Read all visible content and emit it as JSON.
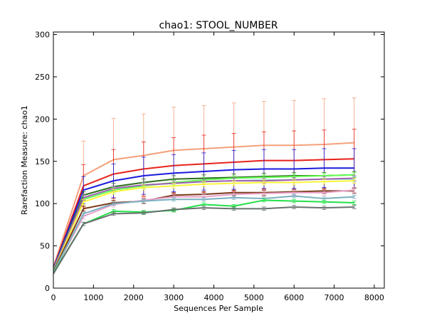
{
  "chart_data": {
    "type": "line",
    "title": "chao1: STOOL_NUMBER",
    "xlabel": "Sequences Per Sample",
    "ylabel": "Rarefaction Measure: chao1",
    "xlim": [
      0,
      8250
    ],
    "ylim": [
      0,
      303
    ],
    "xticks": [
      0,
      1000,
      2000,
      3000,
      4000,
      5000,
      6000,
      7000,
      8000
    ],
    "yticks": [
      0,
      50,
      100,
      150,
      200,
      250,
      300
    ],
    "grid": false,
    "legend": "none",
    "x": [
      1,
      750,
      1500,
      2250,
      3000,
      3750,
      4500,
      5250,
      6000,
      6750,
      7500
    ],
    "series": [
      {
        "color": "#f4a07a",
        "values": [
          25,
          133,
          152,
          157,
          163,
          165,
          167,
          169,
          169,
          170,
          172
        ],
        "error": [
          0,
          41,
          49,
          49,
          51,
          51,
          52,
          52,
          53,
          54,
          53
        ]
      },
      {
        "color": "#e8221b",
        "values": [
          24,
          121,
          135,
          141,
          145,
          147,
          149,
          151,
          151,
          152,
          153
        ],
        "error": [
          0,
          25,
          29,
          32,
          33,
          34,
          34,
          34,
          35,
          35,
          35
        ]
      },
      {
        "color": "#1a1adc",
        "values": [
          23,
          116,
          127,
          133,
          136,
          138,
          140,
          141,
          141,
          142,
          142
        ],
        "error": [
          0,
          16,
          20,
          22,
          22,
          22,
          23,
          23,
          23,
          23,
          23
        ]
      },
      {
        "color": "#2b6e1b",
        "values": [
          22,
          110,
          120,
          125,
          129,
          130,
          131,
          132,
          133,
          133,
          134
        ],
        "error": [
          0,
          4,
          4,
          4,
          4,
          4,
          4,
          4,
          4,
          4,
          4
        ]
      },
      {
        "color": "#8ee0d0",
        "values": [
          22,
          107,
          117,
          122,
          124,
          126,
          127,
          128,
          128,
          129,
          129
        ],
        "error": [
          0,
          3,
          3,
          3,
          3,
          3,
          3,
          3,
          3,
          3,
          3
        ]
      },
      {
        "color": "#66ff55",
        "values": [
          21,
          105,
          116,
          121,
          125,
          128,
          130,
          131,
          132,
          133,
          134
        ],
        "error": [
          0,
          3,
          3,
          3,
          3,
          3,
          3,
          3,
          3,
          3,
          3
        ]
      },
      {
        "color": "#a060b0",
        "values": [
          21,
          107,
          118,
          122,
          124,
          126,
          127,
          127,
          128,
          129,
          130
        ],
        "error": [
          0,
          3,
          3,
          3,
          3,
          3,
          3,
          3,
          3,
          3,
          3
        ]
      },
      {
        "color": "#f8f53a",
        "values": [
          20,
          102,
          114,
          119,
          121,
          123,
          124,
          125,
          125,
          126,
          127
        ],
        "error": [
          0,
          3,
          3,
          3,
          3,
          3,
          3,
          3,
          3,
          3,
          3
        ]
      },
      {
        "color": "#7a3a1a",
        "values": [
          20,
          94,
          101,
          103,
          110,
          111,
          113,
          113,
          114,
          115,
          115
        ],
        "error": [
          0,
          3,
          3,
          3,
          3,
          3,
          3,
          3,
          3,
          3,
          3
        ]
      },
      {
        "color": "#e8a0c8",
        "values": [
          19,
          85,
          99,
          104,
          108,
          108,
          111,
          112,
          113,
          113,
          116
        ],
        "error": [
          0,
          3,
          3,
          3,
          3,
          3,
          3,
          3,
          3,
          3,
          3
        ]
      },
      {
        "color": "#7ab0c0",
        "values": [
          19,
          88,
          100,
          103,
          105,
          105,
          107,
          106,
          109,
          106,
          108
        ],
        "error": [
          0,
          2,
          2,
          2,
          2,
          2,
          2,
          2,
          2,
          2,
          2
        ]
      },
      {
        "color": "#22e048",
        "values": [
          18,
          76,
          91,
          90,
          92,
          99,
          97,
          104,
          103,
          102,
          101
        ],
        "error": [
          0,
          2,
          2,
          2,
          2,
          2,
          2,
          2,
          2,
          2,
          2
        ]
      },
      {
        "color": "#6a7070",
        "values": [
          17,
          76,
          88,
          89,
          93,
          95,
          94,
          94,
          96,
          95,
          96
        ],
        "error": [
          0,
          2,
          2,
          2,
          2,
          2,
          2,
          2,
          2,
          2,
          2
        ]
      }
    ]
  }
}
